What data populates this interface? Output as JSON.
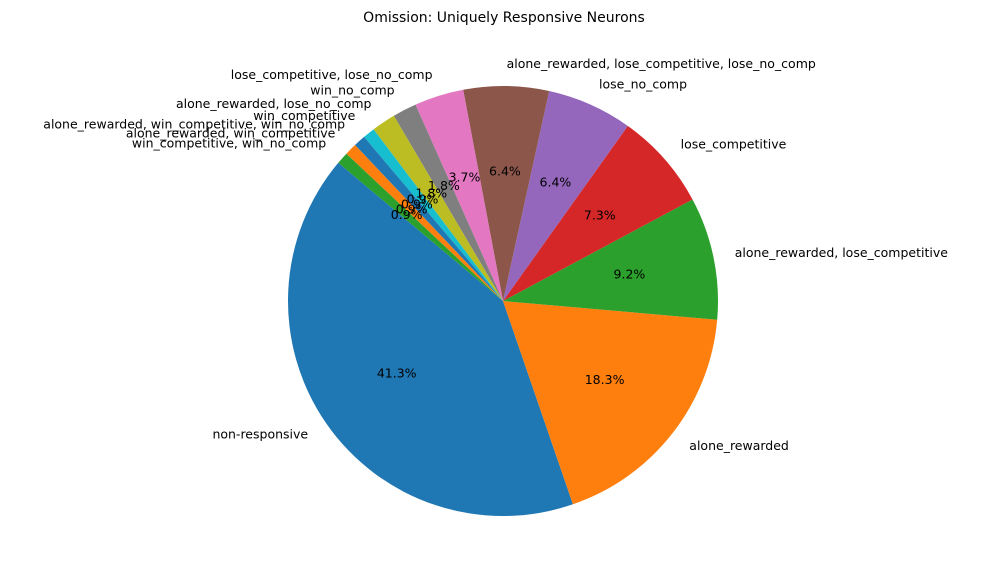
{
  "chart_data": {
    "type": "pie",
    "title": "Omission: Uniquely Responsive Neurons",
    "start_angle_deg": 140,
    "direction": "counterclockwise",
    "slices": [
      {
        "label": "non-responsive",
        "value": 41.3,
        "pct_label": "41.3%",
        "color": "#1f77b4"
      },
      {
        "label": "alone_rewarded",
        "value": 18.3,
        "pct_label": "18.3%",
        "color": "#ff7f0e"
      },
      {
        "label": "alone_rewarded, lose_competitive",
        "value": 9.2,
        "pct_label": "9.2%",
        "color": "#2ca02c"
      },
      {
        "label": "lose_competitive",
        "value": 7.3,
        "pct_label": "7.3%",
        "color": "#d62728"
      },
      {
        "label": "lose_no_comp",
        "value": 6.4,
        "pct_label": "6.4%",
        "color": "#9467bd"
      },
      {
        "label": "alone_rewarded, lose_competitive, lose_no_comp",
        "value": 6.4,
        "pct_label": "6.4%",
        "color": "#8c564b"
      },
      {
        "label": "lose_competitive, lose_no_comp",
        "value": 3.7,
        "pct_label": "3.7%",
        "color": "#e377c2"
      },
      {
        "label": "win_no_comp",
        "value": 1.8,
        "pct_label": "1.8%",
        "color": "#7f7f7f"
      },
      {
        "label": "alone_rewarded, lose_no_comp",
        "value": 1.8,
        "pct_label": "1.8%",
        "color": "#bcbd22"
      },
      {
        "label": "win_competitive",
        "value": 0.9,
        "pct_label": "0.9%",
        "color": "#17becf"
      },
      {
        "label": "alone_rewarded, win_competitive, win_no_comp",
        "value": 0.9,
        "pct_label": "0.9%",
        "color": "#1f77b4"
      },
      {
        "label": "alone_rewarded, win_competitive",
        "value": 0.9,
        "pct_label": "0.9%",
        "color": "#ff7f0e"
      },
      {
        "label": "win_competitive, win_no_comp",
        "value": 0.9,
        "pct_label": "0.9%",
        "color": "#2ca02c"
      }
    ]
  }
}
